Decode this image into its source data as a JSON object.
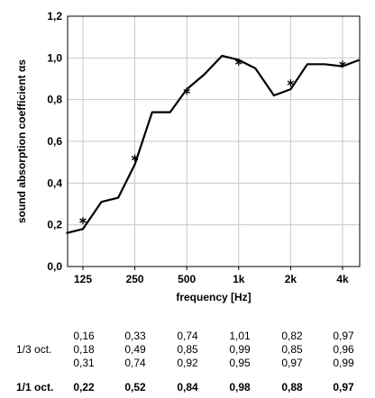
{
  "chart_data": {
    "type": "line",
    "ylabel": "sound absorption coefficient αs",
    "xlabel": "frequency [Hz]",
    "ylim": [
      0,
      1.2
    ],
    "y_ticks": [
      "0,0",
      "0,2",
      "0,4",
      "0,6",
      "0,8",
      "1,0",
      "1,2"
    ],
    "x_ticks": [
      "125",
      "250",
      "500",
      "1k",
      "2k",
      "4k"
    ],
    "grid": true,
    "series": [
      {
        "style": "line",
        "x": [
          "100",
          "125",
          "160",
          "200",
          "250",
          "315",
          "400",
          "500",
          "630",
          "800",
          "1000",
          "1250",
          "1600",
          "2000",
          "2500",
          "3150",
          "4000",
          "5000"
        ],
        "values": [
          0.16,
          0.18,
          0.31,
          0.33,
          0.49,
          0.74,
          0.74,
          0.85,
          0.92,
          1.01,
          0.99,
          0.95,
          0.82,
          0.85,
          0.97,
          0.97,
          0.96,
          0.99
        ]
      },
      {
        "style": "star-markers",
        "x": [
          "125",
          "250",
          "500",
          "1000",
          "2000",
          "4000"
        ],
        "values": [
          0.22,
          0.52,
          0.84,
          0.98,
          0.88,
          0.97
        ]
      }
    ]
  },
  "table": {
    "third_octave_label": "1/3 oct.",
    "octave_label": "1/1 oct.",
    "third_octave_rows": [
      [
        "0,16",
        "0,33",
        "0,74",
        "1,01",
        "0,82",
        "0,97"
      ],
      [
        "0,18",
        "0,49",
        "0,85",
        "0,99",
        "0,85",
        "0,96"
      ],
      [
        "0,31",
        "0,74",
        "0,92",
        "0,95",
        "0,97",
        "0,99"
      ]
    ],
    "octave_values": [
      "0,22",
      "0,52",
      "0,84",
      "0,98",
      "0,88",
      "0,97"
    ]
  }
}
